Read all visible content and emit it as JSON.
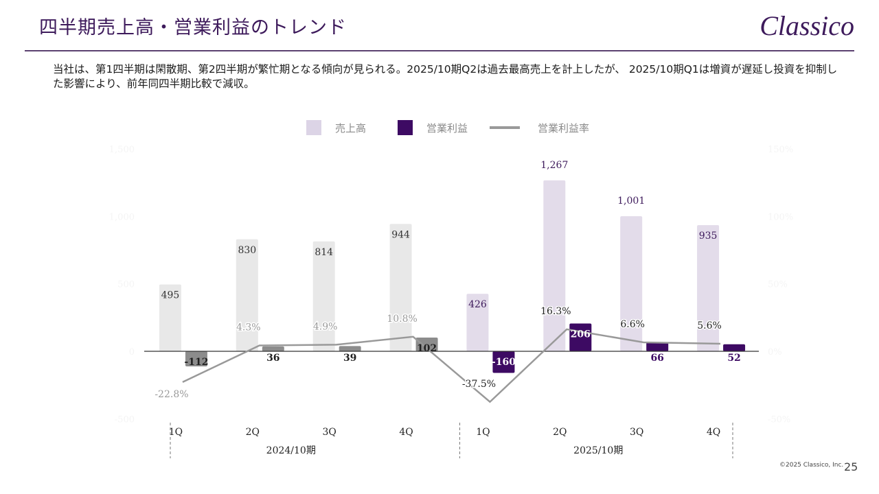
{
  "header": {
    "title": "四半期売上高・営業利益のトレンド",
    "logo": "Classico"
  },
  "description": "当社は、第1四半期は閑散期、第2四半期が繁忙期となる傾向が見られる。2025/10期Q2は過去最高売上を計上したが、 2025/10期Q1は増資が遅延し投資を抑制した影響により、前年同四半期比較で減収。",
  "legend": {
    "sales": "売上高",
    "op_income": "営業利益",
    "op_margin": "営業利益率"
  },
  "colors": {
    "sales_2024": "#e8e8e8",
    "sales_2025": "#e3dcea",
    "op_2024": "#8c8c8c",
    "op_2025": "#3d0a63",
    "line": "#999999",
    "brand": "#3d1a5b"
  },
  "footer": {
    "copyright": "©2025 Classico, Inc.",
    "page": "25"
  },
  "chart_data": {
    "type": "bar",
    "title": "四半期売上高・営業利益のトレンド",
    "categories": [
      "1Q",
      "2Q",
      "3Q",
      "4Q",
      "1Q",
      "2Q",
      "3Q",
      "4Q"
    ],
    "groups": [
      {
        "label": "2024/10期",
        "categories": [
          "1Q",
          "2Q",
          "3Q",
          "4Q"
        ]
      },
      {
        "label": "2025/10期",
        "categories": [
          "1Q",
          "2Q",
          "3Q",
          "4Q"
        ]
      }
    ],
    "series": [
      {
        "name": "売上高",
        "kind": "bar",
        "axis": "left",
        "values": [
          495,
          830,
          814,
          944,
          426,
          1267,
          1001,
          935
        ],
        "labels": [
          "495",
          "830",
          "814",
          "944",
          "426",
          "1,267",
          "1,001",
          "935"
        ]
      },
      {
        "name": "営業利益",
        "kind": "bar",
        "axis": "left",
        "values": [
          -112,
          36,
          39,
          102,
          -160,
          206,
          66,
          52
        ],
        "labels": [
          "-112",
          "36",
          "39",
          "102",
          "-160",
          "206",
          "66",
          "52"
        ]
      },
      {
        "name": "営業利益率",
        "kind": "line",
        "axis": "right",
        "unit": "%",
        "values": [
          -22.8,
          4.3,
          4.9,
          10.8,
          -37.5,
          16.3,
          6.6,
          5.6
        ],
        "labels": [
          "-22.8%",
          "4.3%",
          "4.9%",
          "10.8%",
          "-37.5%",
          "16.3%",
          "6.6%",
          "5.6%"
        ]
      }
    ],
    "y_left": {
      "range": [
        -500,
        1500
      ],
      "ticks": [
        "1,500",
        "1,000",
        "500",
        "0",
        "-500"
      ],
      "tick_values": [
        1500,
        1000,
        500,
        0,
        -500
      ]
    },
    "y_right": {
      "range": [
        -50,
        150
      ],
      "ticks": [
        "150%",
        "100%",
        "50%",
        "0%",
        "-50%"
      ],
      "tick_values": [
        150,
        100,
        50,
        0,
        -50
      ]
    },
    "grid": false,
    "legend_position": "top-center"
  }
}
